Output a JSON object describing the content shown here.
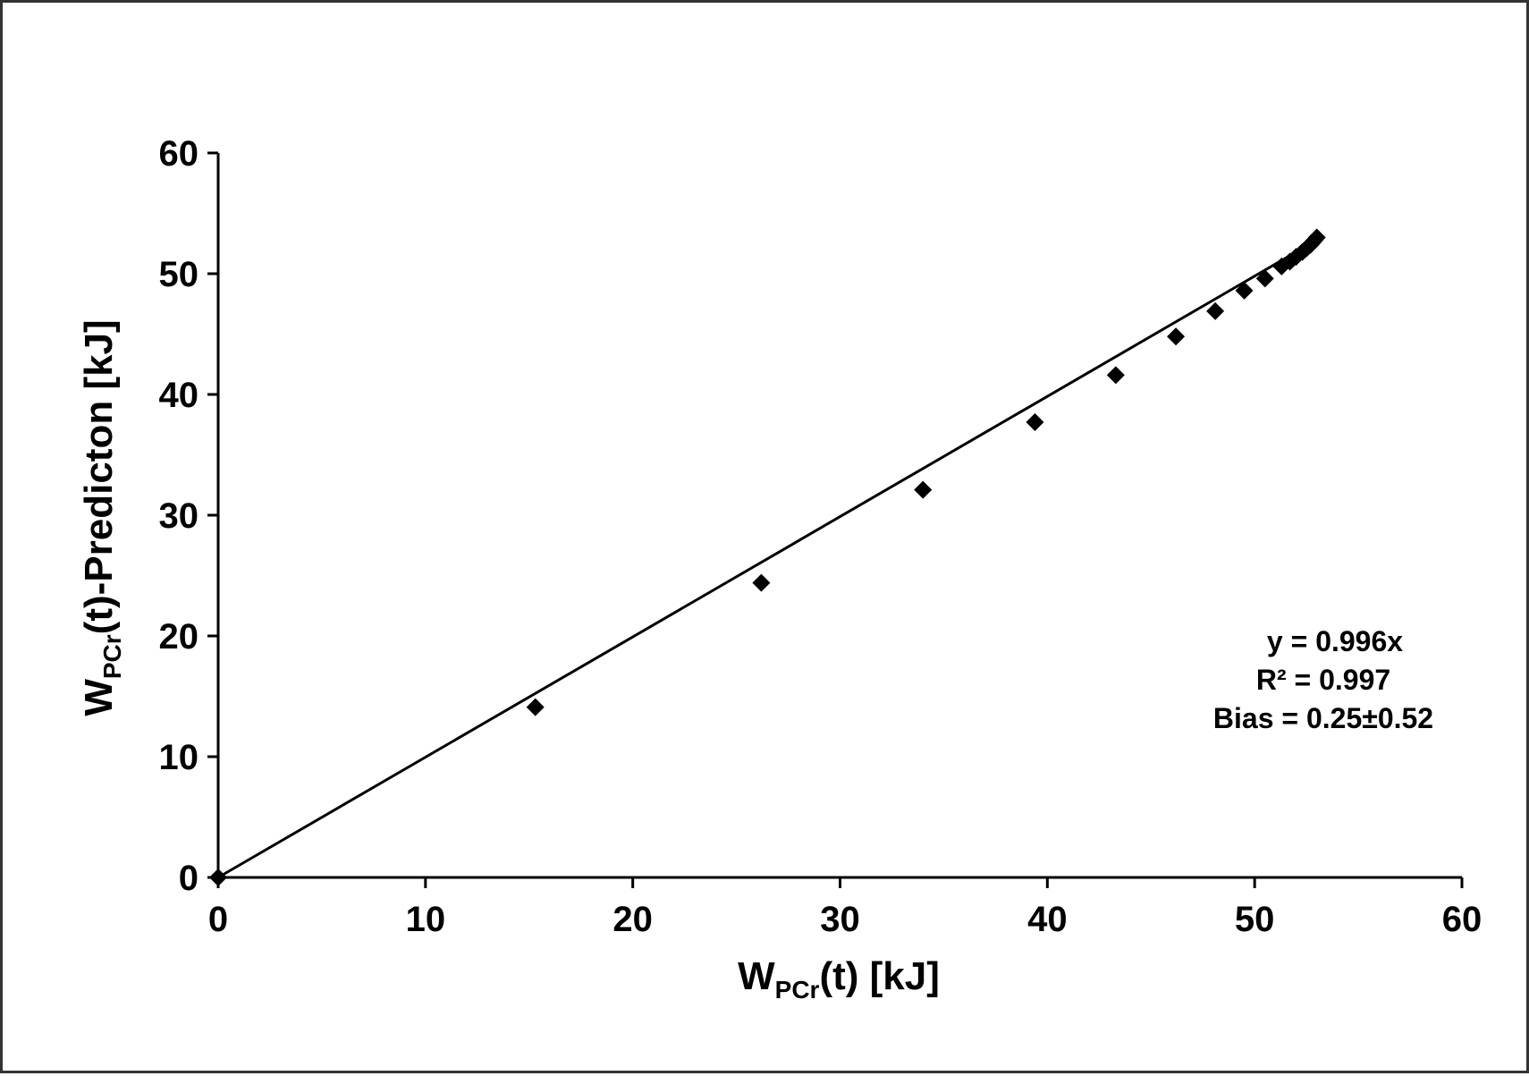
{
  "chart_data": {
    "type": "scatter",
    "title": "",
    "xlabel": {
      "main": "W",
      "sub": "PCr",
      "rest": "(t) [kJ]"
    },
    "ylabel": {
      "main": "W",
      "sub": "PCr",
      "rest": "(t)-Predicton [kJ]"
    },
    "xlim": [
      0,
      60
    ],
    "ylim": [
      0,
      60
    ],
    "xticks": [
      0,
      10,
      20,
      30,
      40,
      50,
      60
    ],
    "yticks": [
      0,
      10,
      20,
      30,
      40,
      50,
      60
    ],
    "grid": false,
    "series": [
      {
        "marker": "diamond",
        "color": "#000000",
        "points": [
          [
            0,
            0
          ],
          [
            15.3,
            14.1
          ],
          [
            26.2,
            24.4
          ],
          [
            34.0,
            32.1
          ],
          [
            39.4,
            37.7
          ],
          [
            43.3,
            41.6
          ],
          [
            46.2,
            44.8
          ],
          [
            48.1,
            46.9
          ],
          [
            49.5,
            48.6
          ],
          [
            50.5,
            49.6
          ],
          [
            51.3,
            50.6
          ],
          [
            51.7,
            51.0
          ],
          [
            52.0,
            51.4
          ],
          [
            52.3,
            51.8
          ],
          [
            52.5,
            52.1
          ],
          [
            52.7,
            52.4
          ],
          [
            52.8,
            52.6
          ],
          [
            52.9,
            52.8
          ],
          [
            53.0,
            53.0
          ]
        ]
      }
    ],
    "trendline": {
      "type": "linear",
      "slope": 0.996,
      "intercept": 0,
      "x_range": [
        0,
        52.9
      ],
      "color": "#000000"
    },
    "annotations": [
      "y = 0.996x",
      "R² = 0.997",
      "Bias = 0.25±0.52"
    ]
  }
}
